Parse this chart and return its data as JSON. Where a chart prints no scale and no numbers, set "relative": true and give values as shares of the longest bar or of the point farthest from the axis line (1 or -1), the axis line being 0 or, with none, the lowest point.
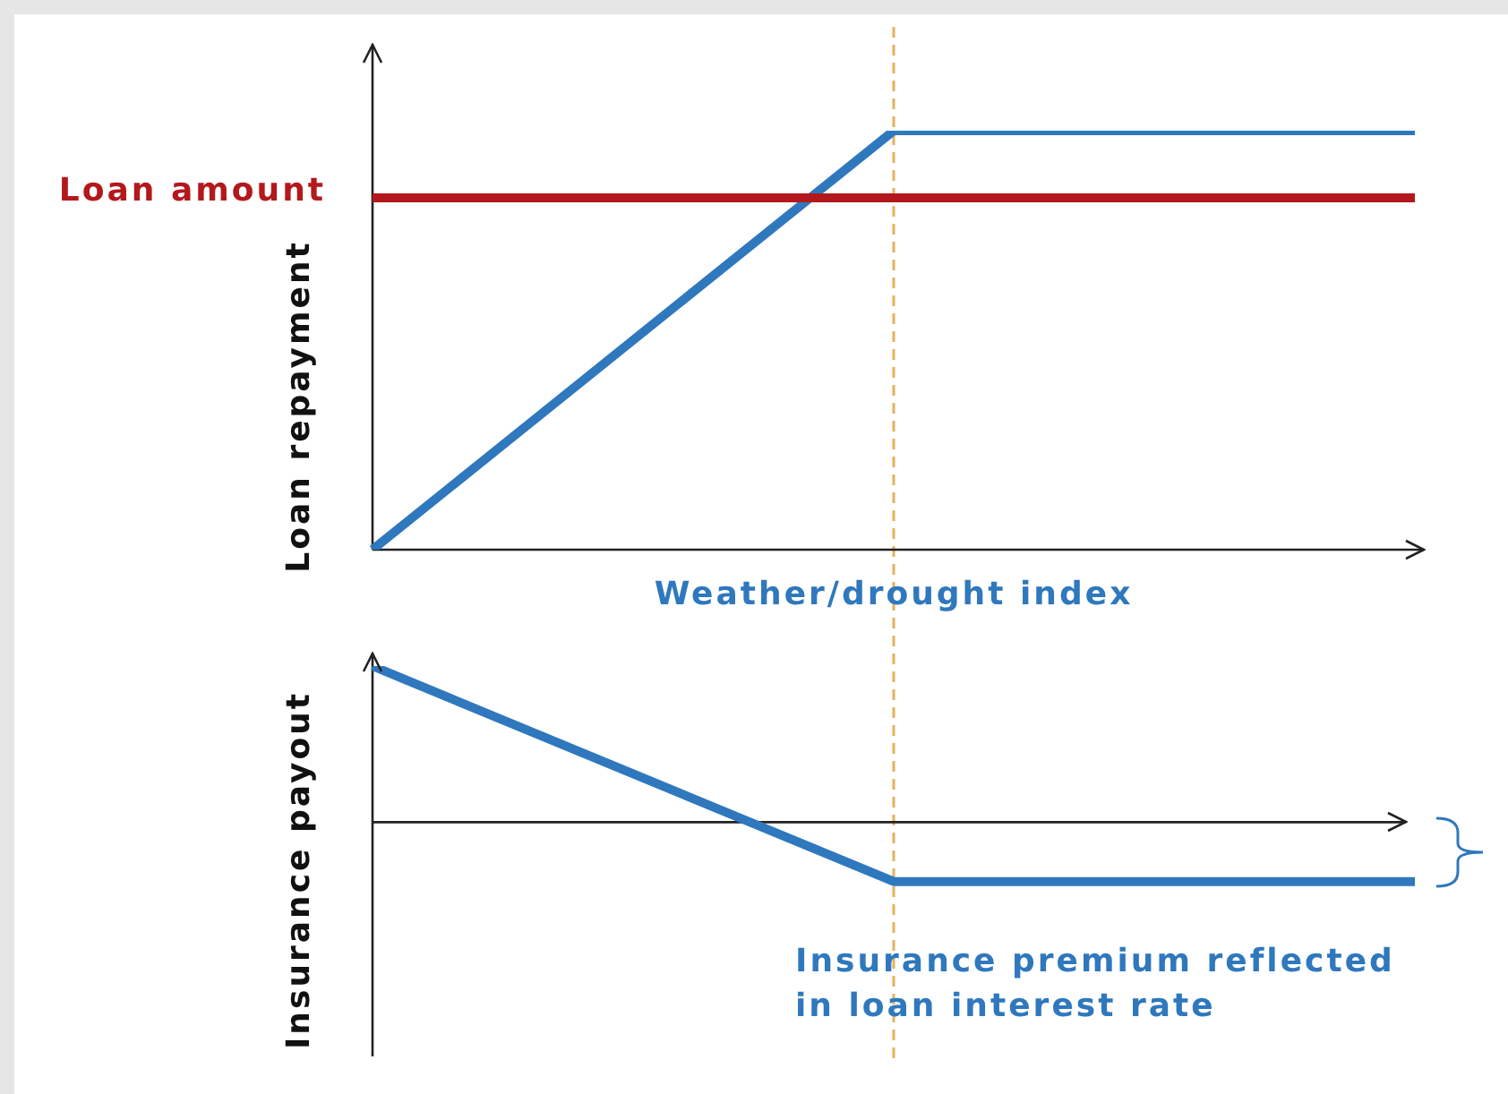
{
  "chart_data": [
    {
      "type": "line",
      "relative": true,
      "ylabel": "Loan repayment",
      "xlabel": "Weather/drought index",
      "categories": [
        null,
        null,
        null
      ],
      "marker": "none",
      "line_style": "solid",
      "series": [
        {
          "name": "Loan amount",
          "color": "#b3191c",
          "values": [
            0.84,
            0.84,
            0.84
          ]
        },
        {
          "color": "#2f78bd",
          "values": [
            0,
            1,
            1
          ]
        }
      ]
    },
    {
      "type": "line",
      "relative": true,
      "ylabel": "Insurance payout",
      "categories": [
        null,
        null,
        null
      ],
      "marker": "none",
      "line_style": "solid",
      "series": [
        {
          "color": "#2f78bd",
          "values": [
            1,
            -0.38,
            -0.38
          ]
        }
      ],
      "annotations": [
        "Insurance premium reflected in loan interest rate"
      ]
    }
  ]
}
